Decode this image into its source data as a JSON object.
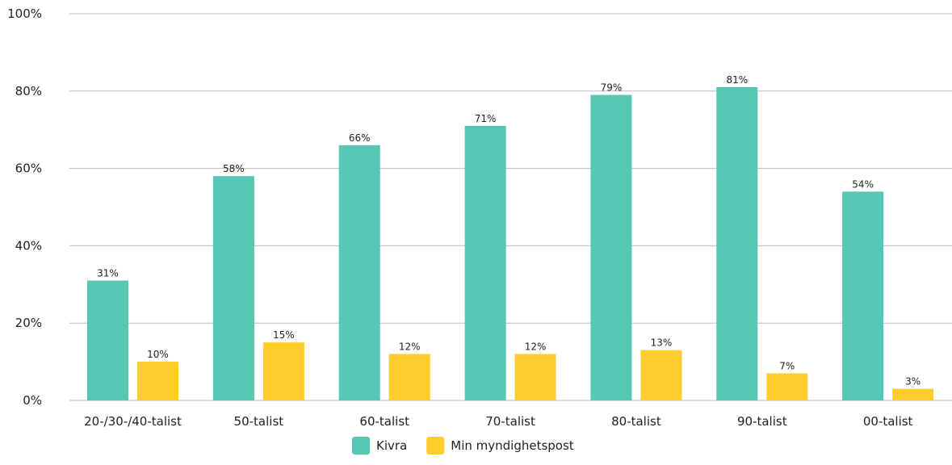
{
  "chart_data": {
    "type": "bar",
    "title": "",
    "xlabel": "",
    "ylabel": "",
    "categories": [
      "20-/30-/40-talist",
      "50-talist",
      "60-talist",
      "70-talist",
      "80-talist",
      "90-talist",
      "00-talist"
    ],
    "series": [
      {
        "name": "Kivra",
        "color": "#56c7b3",
        "values": [
          31,
          58,
          66,
          71,
          79,
          81,
          54
        ]
      },
      {
        "name": "Min myndighetspost",
        "color": "#ffcc2e",
        "values": [
          10,
          15,
          12,
          12,
          13,
          7,
          3
        ]
      }
    ],
    "ylim": [
      0,
      100
    ],
    "yticks": [
      0,
      20,
      40,
      60,
      80,
      100
    ],
    "ytick_suffix": "%",
    "data_label_suffix": "%",
    "grid": true,
    "legend_position": "bottom-center"
  }
}
